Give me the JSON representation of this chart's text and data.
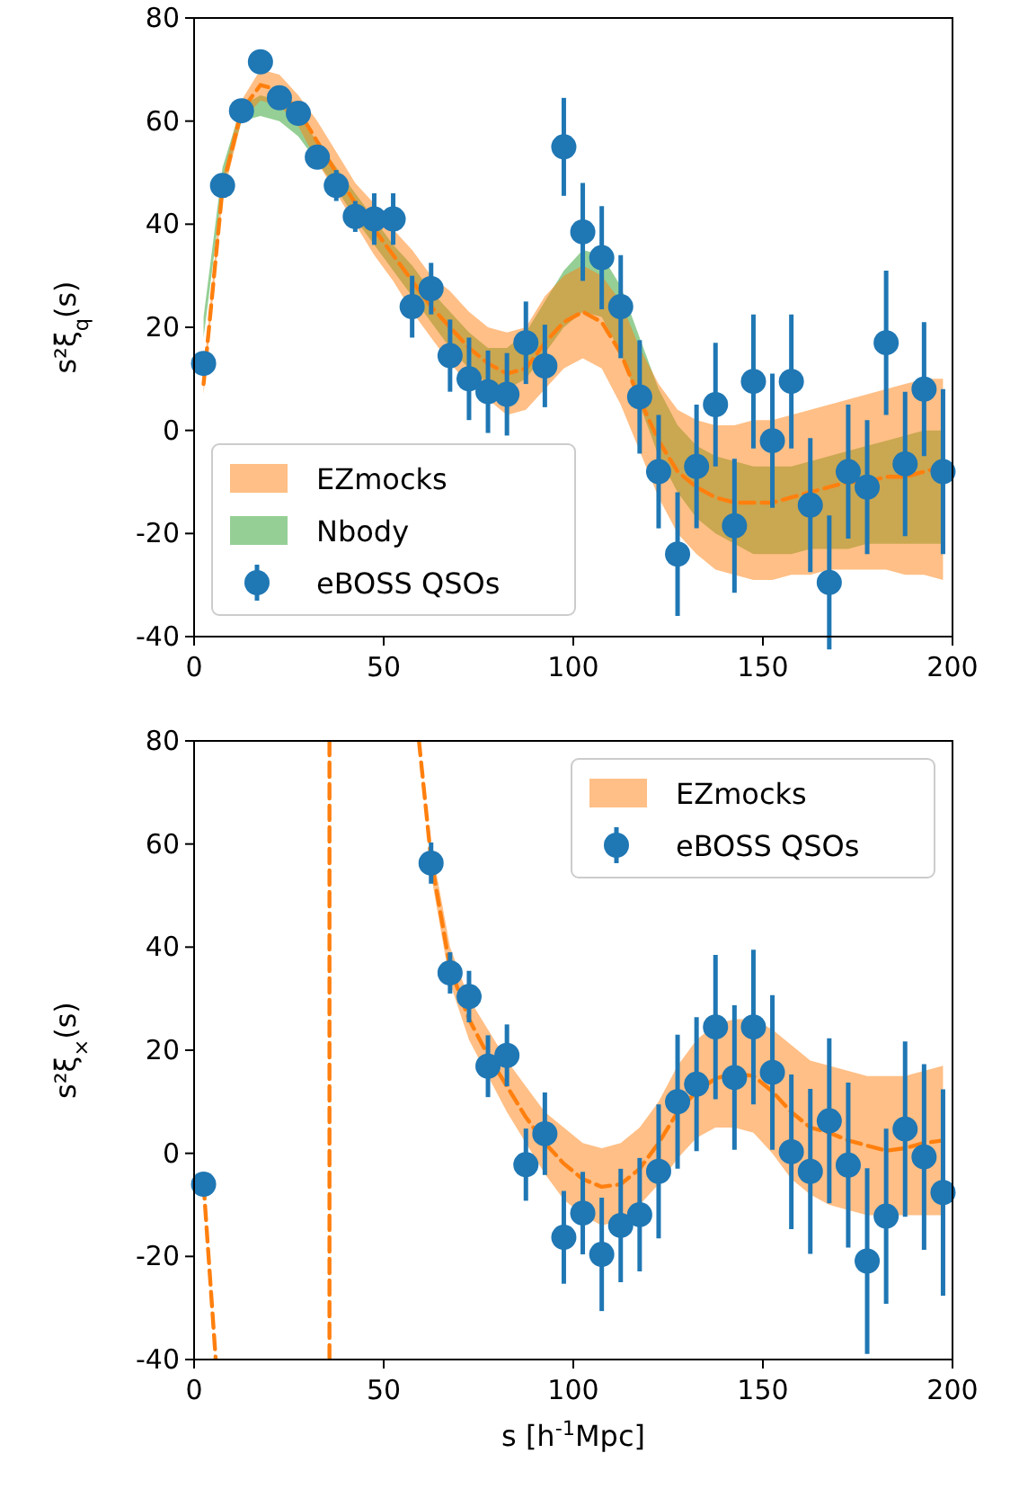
{
  "chart_data": [
    {
      "type": "line",
      "ylabel": "s²ξ$_{q}$(s)",
      "xlim": [
        0,
        200
      ],
      "ylim": [
        -40,
        80
      ],
      "xticks": [
        0,
        50,
        100,
        150,
        200
      ],
      "yticks": [
        -40,
        -20,
        0,
        20,
        40,
        60,
        80
      ],
      "grid": false,
      "legend": "bottom left",
      "series": [
        {
          "name": "EZmocks",
          "line_style": "dashed",
          "color": "#ff7f0e",
          "x": [
            2.5,
            7.5,
            12.5,
            17.5,
            22.5,
            27.5,
            32.5,
            37.5,
            42.5,
            47.5,
            52.5,
            57.5,
            62.5,
            67.5,
            72.5,
            77.5,
            82.5,
            87.5,
            92.5,
            97.5,
            102.5,
            107.5,
            112.5,
            117.5,
            122.5,
            127.5,
            132.5,
            137.5,
            142.5,
            147.5,
            152.5,
            157.5,
            162.5,
            167.5,
            172.5,
            177.5,
            182.5,
            187.5,
            192.5,
            197.5
          ],
          "values": [
            9,
            47,
            62,
            67,
            66,
            62,
            56,
            50,
            44,
            39,
            34,
            29,
            24,
            20,
            16,
            13,
            11,
            12,
            17,
            21,
            23,
            21,
            15,
            6,
            -2,
            -8,
            -11,
            -13,
            -14,
            -14,
            -14,
            -13,
            -12,
            -11,
            -10,
            -10,
            -9,
            -9,
            -8,
            -7
          ],
          "lower": [
            7,
            45,
            60,
            64,
            63,
            59,
            52,
            46,
            40,
            34,
            29,
            23,
            18,
            13,
            9,
            6,
            3,
            4,
            8,
            12,
            14,
            12,
            5,
            -4,
            -13,
            -20,
            -24,
            -27,
            -28,
            -29,
            -29,
            -28,
            -28,
            -27,
            -27,
            -27,
            -27,
            -28,
            -28,
            -29
          ],
          "upper": [
            11,
            49,
            64,
            70,
            69,
            65,
            60,
            54,
            48,
            44,
            39,
            35,
            30,
            27,
            23,
            20,
            19,
            20,
            26,
            30,
            32,
            30,
            25,
            16,
            9,
            4,
            2,
            1,
            1,
            2,
            2,
            3,
            4,
            5,
            6,
            7,
            8,
            9,
            10,
            10
          ]
        },
        {
          "name": "Nbody",
          "type": "area",
          "color": "#2ca02c",
          "x": [
            2.5,
            7.5,
            12.5,
            17.5,
            22.5,
            27.5,
            32.5,
            37.5,
            42.5,
            47.5,
            52.5,
            57.5,
            62.5,
            67.5,
            72.5,
            77.5,
            82.5,
            87.5,
            92.5,
            97.5,
            102.5,
            107.5,
            112.5,
            117.5,
            122.5,
            127.5,
            132.5,
            137.5,
            142.5,
            147.5,
            152.5,
            157.5,
            162.5,
            167.5,
            172.5,
            177.5,
            182.5,
            187.5,
            192.5,
            197.5
          ],
          "values": [
            null,
            null,
            null,
            null,
            null,
            null,
            null,
            null,
            null,
            null,
            null,
            null,
            null,
            null,
            null,
            null,
            null,
            null,
            null,
            null,
            null,
            null,
            null,
            null,
            null,
            null,
            null,
            null,
            null,
            null,
            null,
            null,
            null,
            null,
            null,
            null,
            null,
            null,
            null,
            null
          ],
          "lower": [
            18,
            47,
            60,
            61,
            60,
            57,
            52,
            47,
            41,
            36,
            31,
            26,
            21,
            16,
            12,
            9,
            8,
            10,
            15,
            20,
            23,
            22,
            15,
            5,
            -5,
            -12,
            -17,
            -20,
            -22,
            -24,
            -24,
            -24,
            -23,
            -23,
            -23,
            -22,
            -22,
            -22,
            -22,
            -22
          ],
          "upper": [
            22,
            51,
            63,
            65,
            64,
            61,
            56,
            51,
            46,
            41,
            36,
            32,
            27,
            23,
            19,
            16,
            16,
            19,
            25,
            31,
            35,
            34,
            28,
            18,
            8,
            1,
            -3,
            -5,
            -6,
            -7,
            -7,
            -7,
            -6,
            -5,
            -4,
            -3,
            -2,
            -1,
            0,
            0
          ]
        },
        {
          "name": "eBOSS QSOs",
          "type": "scatter",
          "marker": "circle",
          "color": "#1f77b4",
          "x": [
            2.5,
            7.5,
            12.5,
            17.5,
            22.5,
            27.5,
            32.5,
            37.5,
            42.5,
            47.5,
            52.5,
            57.5,
            62.5,
            67.5,
            72.5,
            77.5,
            82.5,
            87.5,
            92.5,
            97.5,
            102.5,
            107.5,
            112.5,
            117.5,
            122.5,
            127.5,
            132.5,
            137.5,
            142.5,
            147.5,
            152.5,
            157.5,
            162.5,
            167.5,
            172.5,
            177.5,
            182.5,
            187.5,
            192.5,
            197.5
          ],
          "values": [
            13,
            47.5,
            62,
            71.5,
            64.5,
            61.5,
            53,
            47.5,
            41.5,
            41,
            41,
            24,
            27.5,
            14.5,
            10,
            7.5,
            7,
            17,
            12.5,
            55,
            38.5,
            33.5,
            24,
            6.5,
            -8,
            -24,
            -7,
            5,
            -18.5,
            9.5,
            -2,
            9.5,
            -14.5,
            -29.5,
            -8,
            -11,
            17,
            -6.5,
            8,
            -8
          ],
          "errors": [
            2,
            2,
            2,
            2,
            2,
            2,
            2,
            3,
            3,
            5,
            5,
            6,
            5,
            7,
            8,
            8,
            8,
            8,
            8,
            9.5,
            9.5,
            10,
            10,
            11,
            11,
            12,
            12,
            12,
            13,
            13,
            13,
            13,
            13,
            13,
            13,
            13,
            14,
            14,
            13,
            16
          ]
        }
      ]
    },
    {
      "type": "line",
      "ylabel": "s²ξ$_{×}$(s)",
      "xlabel": "s [h$^{-1}$Mpc]",
      "xlim": [
        0,
        200
      ],
      "ylim": [
        -40,
        80
      ],
      "xticks": [
        0,
        50,
        100,
        150,
        200
      ],
      "yticks": [
        -40,
        -20,
        0,
        20,
        40,
        60,
        80
      ],
      "grid": false,
      "legend": "top right",
      "series": [
        {
          "name": "EZmocks",
          "line_style": "dashed",
          "color": "#ff7f0e",
          "x": [
            2.5,
            5.7,
            null,
            35.7,
            35.7,
            null,
            59.3,
            62.5,
            67.5,
            72.5,
            77.5,
            82.5,
            87.5,
            92.5,
            97.5,
            102.5,
            107.5,
            112.5,
            117.5,
            122.5,
            127.5,
            132.5,
            137.5,
            142.5,
            147.5,
            152.5,
            157.5,
            162.5,
            167.5,
            172.5,
            177.5,
            182.5,
            187.5,
            192.5,
            197.5
          ],
          "values": [
            -6,
            -40,
            null,
            -40,
            80,
            null,
            80,
            57,
            36,
            26,
            19,
            13,
            7,
            2,
            -2,
            -5,
            -6.5,
            -6,
            -3,
            2,
            8,
            12,
            14.5,
            15.5,
            15,
            12,
            8,
            5,
            4,
            2.5,
            1.5,
            0.5,
            1,
            2,
            2.5
          ],
          "lower": [
            null,
            null,
            null,
            null,
            null,
            null,
            null,
            54,
            33,
            22,
            15,
            8,
            2,
            -4,
            -9,
            -12,
            -14,
            -13,
            -10,
            -6,
            -1,
            3,
            5,
            5,
            4,
            0,
            -5,
            -8,
            -10,
            -11,
            -12,
            -12,
            -12,
            -12,
            -12
          ],
          "upper": [
            null,
            null,
            null,
            null,
            null,
            null,
            null,
            60,
            40,
            30,
            24,
            18,
            13,
            8,
            5,
            2,
            1,
            2,
            5,
            10,
            17,
            22,
            25,
            26,
            26,
            24,
            21,
            18,
            17,
            16,
            15,
            15,
            15,
            16,
            17
          ]
        },
        {
          "name": "eBOSS QSOs",
          "type": "scatter",
          "marker": "circle",
          "color": "#1f77b4",
          "x": [
            2.5,
            62.5,
            67.5,
            72.5,
            77.5,
            82.5,
            87.5,
            92.5,
            97.5,
            102.5,
            107.5,
            112.5,
            117.5,
            122.5,
            127.5,
            132.5,
            137.5,
            142.5,
            147.5,
            152.5,
            157.5,
            162.5,
            167.5,
            172.5,
            177.5,
            182.5,
            187.5,
            192.5,
            197.5
          ],
          "values": [
            -6,
            56.3,
            35,
            30.4,
            16.9,
            19,
            -2.2,
            3.8,
            -16.3,
            -11.6,
            -19.6,
            -14,
            -11.9,
            -3.5,
            10,
            13.4,
            24.5,
            14.7,
            24.5,
            15.7,
            0.3,
            -3.5,
            6.3,
            -2.3,
            -20.9,
            -12.2,
            4.7,
            -0.7,
            -7.6
          ],
          "errors": [
            1,
            4,
            4,
            5,
            6,
            6,
            7,
            8,
            9,
            8,
            11,
            11,
            11,
            13,
            13,
            13,
            14,
            14,
            15,
            15,
            15,
            16,
            16,
            16,
            18,
            17,
            17,
            18,
            20
          ]
        }
      ]
    }
  ]
}
